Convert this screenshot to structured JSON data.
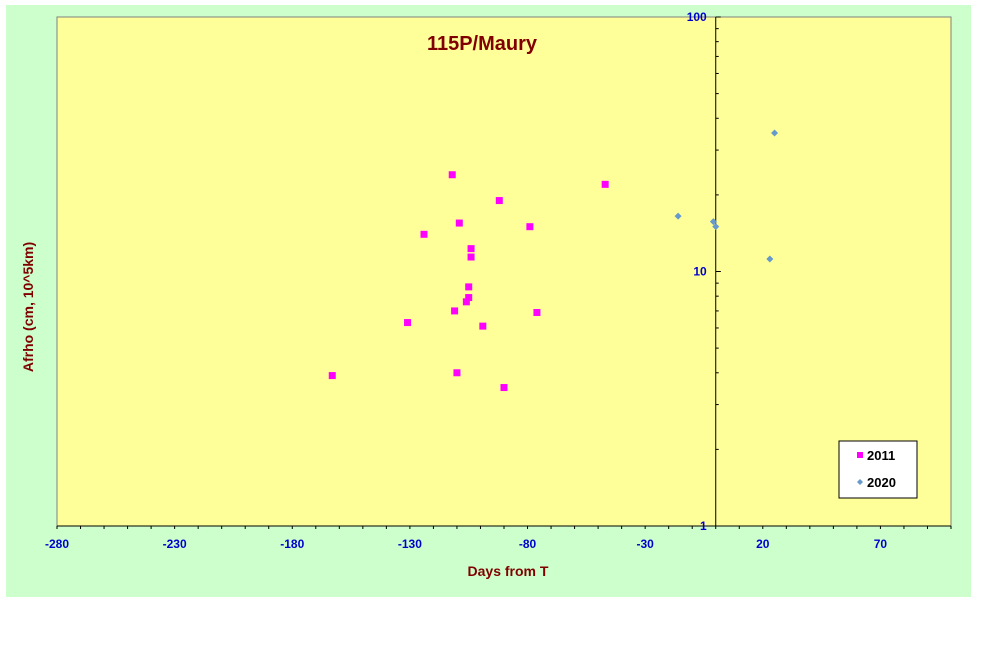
{
  "chart_data": {
    "type": "scatter",
    "title": "115P/Maury",
    "xlabel": "Days from T",
    "ylabel": "Afrho (cm, 10^5km)",
    "xlim": [
      -280,
      100
    ],
    "ylim": [
      1,
      100
    ],
    "y_scale": "log",
    "x_ticks": [
      -280,
      -230,
      -180,
      -130,
      -80,
      -30,
      20,
      70
    ],
    "y_ticks": [
      1,
      10,
      100
    ],
    "grid": false,
    "legend_position": "bottom-right",
    "colors": {
      "plot_bg": "#ffff99",
      "outer_bg": "#ccffcc",
      "tick_text": "#0000cc",
      "label_text": "#800000"
    },
    "series": [
      {
        "name": "2011",
        "marker": "square",
        "color": "#ff00ff",
        "points": [
          [
            -163,
            3.9
          ],
          [
            -131,
            6.3
          ],
          [
            -124,
            14
          ],
          [
            -112,
            24
          ],
          [
            -111,
            7.0
          ],
          [
            -110,
            4.0
          ],
          [
            -109,
            15.5
          ],
          [
            -106,
            7.6
          ],
          [
            -105,
            7.9
          ],
          [
            -105,
            8.7
          ],
          [
            -104,
            12.3
          ],
          [
            -104,
            11.4
          ],
          [
            -99,
            6.1
          ],
          [
            -92,
            19
          ],
          [
            -90,
            3.5
          ],
          [
            -79,
            15
          ],
          [
            -76,
            6.9
          ],
          [
            -47,
            22
          ]
        ]
      },
      {
        "name": "2020",
        "marker": "diamond",
        "color": "#6699cc",
        "points": [
          [
            -16,
            16.5
          ],
          [
            -1,
            15.7
          ],
          [
            0,
            15.0
          ],
          [
            23,
            11.2
          ],
          [
            25,
            35
          ]
        ]
      }
    ]
  }
}
